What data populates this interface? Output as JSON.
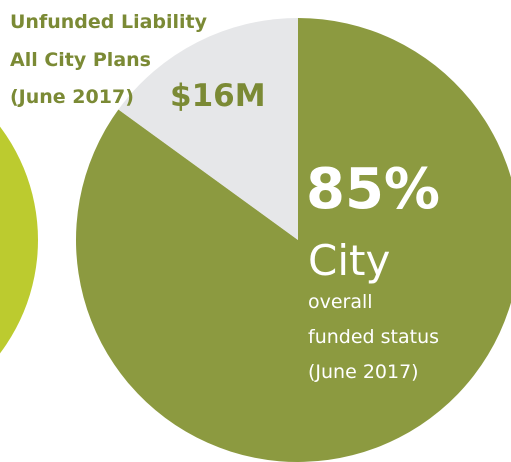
{
  "chart_data": {
    "type": "pie",
    "values": [
      85,
      15
    ],
    "value_labels": [
      "85%",
      null
    ],
    "colors": [
      "#8c9a40",
      "#e6e7e9"
    ],
    "annotations": {
      "unfunded_lines": [
        "Unfunded Liability",
        "All City Plans",
        "(June 2017)"
      ],
      "unfunded_amount": "$16M",
      "funded_lines": [
        "City",
        "overall",
        "funded status",
        "(June 2017)"
      ]
    }
  }
}
